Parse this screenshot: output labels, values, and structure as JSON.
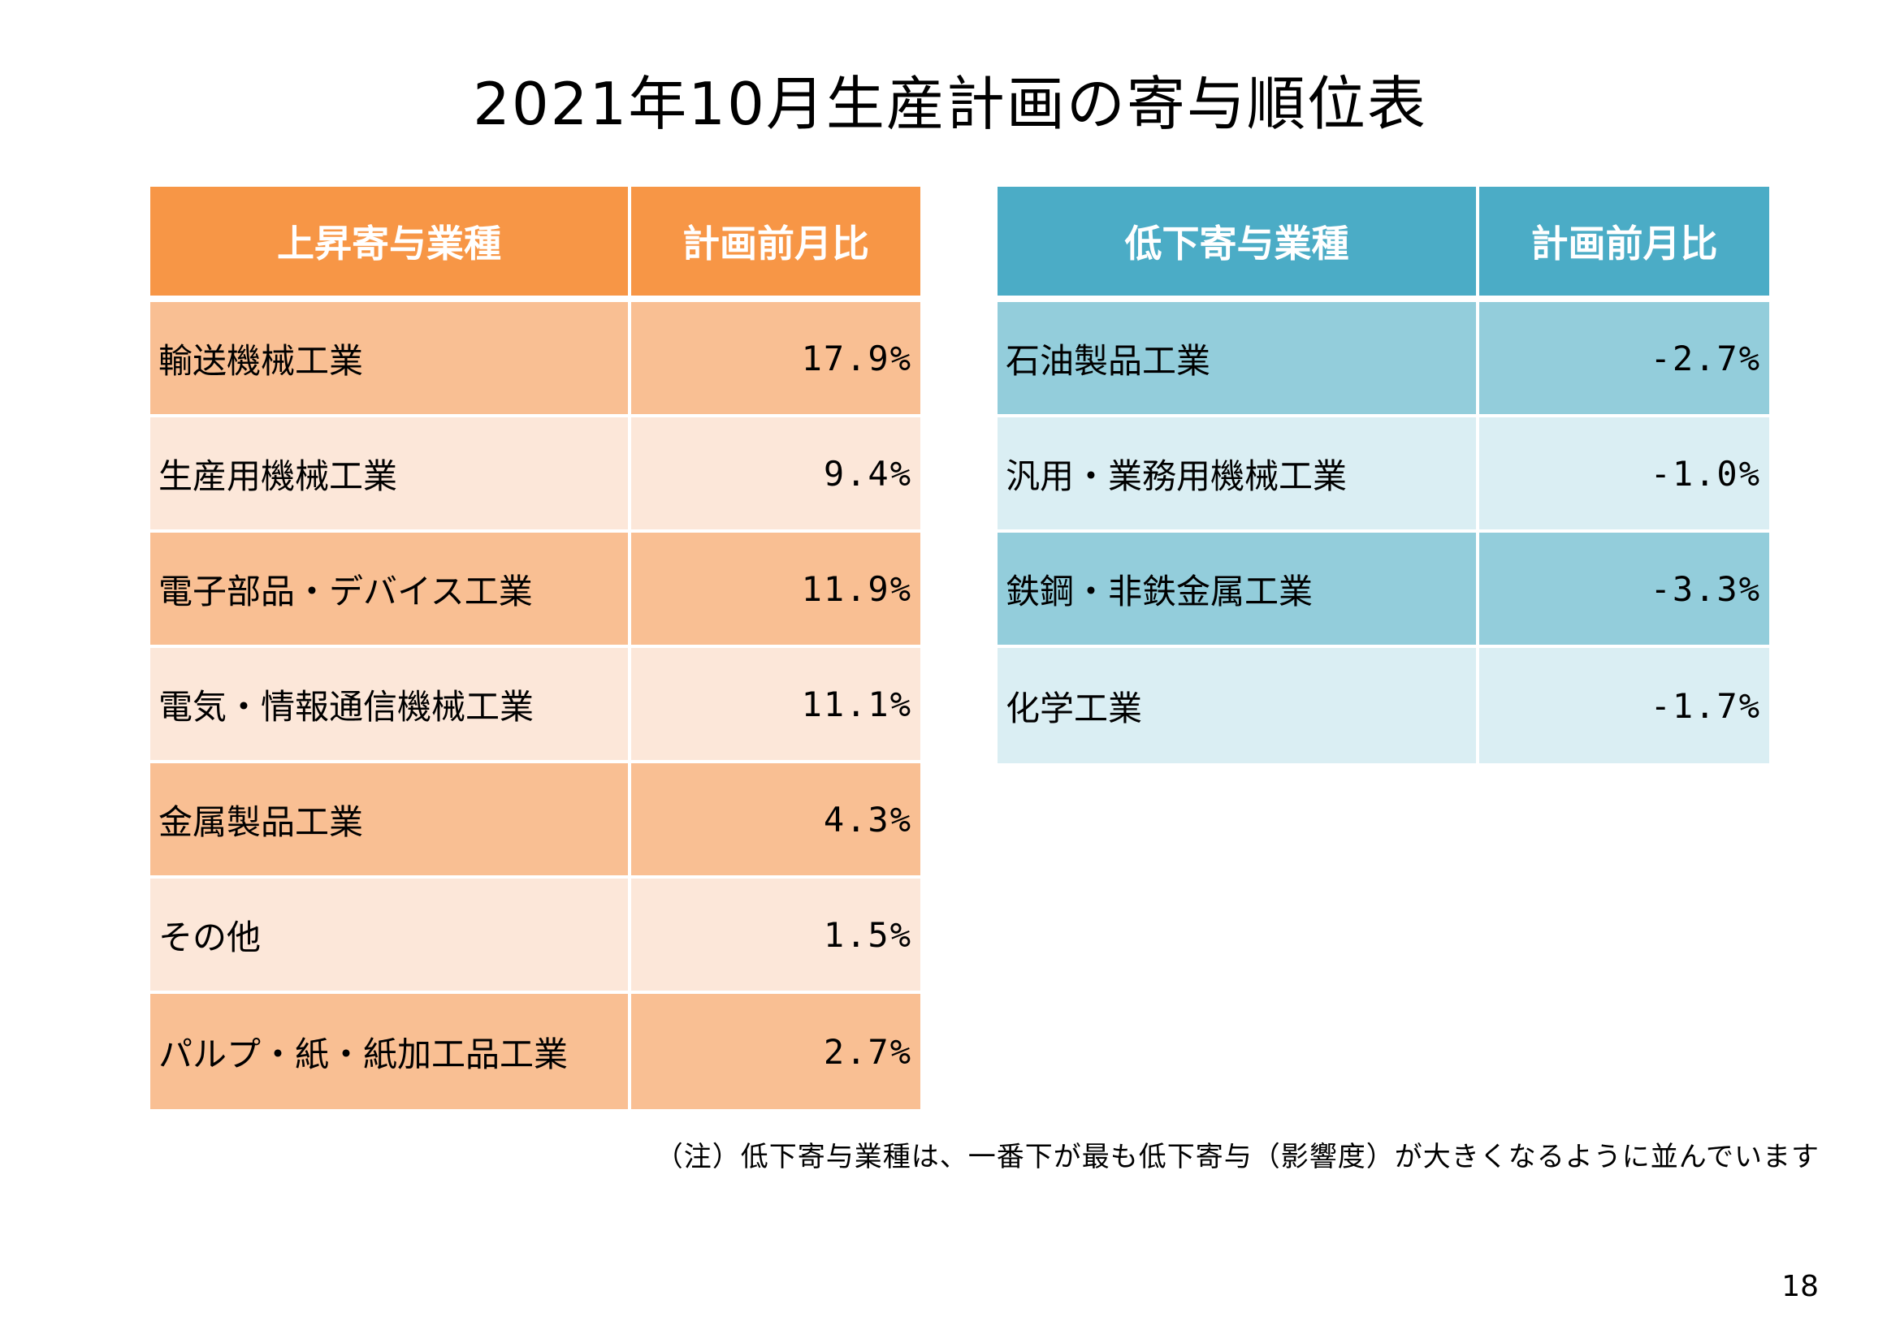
{
  "title": "2021年10月生産計画の寄与順位表",
  "rise_table": {
    "header_industry": "上昇寄与業種",
    "header_change": "計画前月比",
    "rows": [
      {
        "industry": "輸送機械工業",
        "change": "17.9%"
      },
      {
        "industry": "生産用機械工業",
        "change": "9.4%"
      },
      {
        "industry": "電子部品・デバイス工業",
        "change": "11.9%"
      },
      {
        "industry": "電気・情報通信機械工業",
        "change": "11.1%"
      },
      {
        "industry": "金属製品工業",
        "change": "4.3%"
      },
      {
        "industry": "その他",
        "change": "1.5%"
      },
      {
        "industry": "パルプ・紙・紙加工品工業",
        "change": "2.7%"
      }
    ]
  },
  "fall_table": {
    "header_industry": "低下寄与業種",
    "header_change": "計画前月比",
    "rows": [
      {
        "industry": "石油製品工業",
        "change": "-2.7%"
      },
      {
        "industry": "汎用・業務用機械工業",
        "change": "-1.0%"
      },
      {
        "industry": "鉄鋼・非鉄金属工業",
        "change": "-3.3%"
      },
      {
        "industry": "化学工業",
        "change": "-1.7%"
      }
    ]
  },
  "note": "（注）低下寄与業種は、一番下が最も低下寄与（影響度）が大きくなるように並んでいます",
  "page_number": "18",
  "colors": {
    "rise_header": "#f79646",
    "rise_row_dark": "#f9bf93",
    "rise_row_light": "#fce7d9",
    "fall_header": "#4bacc6",
    "fall_row_dark": "#93cddb",
    "fall_row_light": "#daeef3"
  }
}
